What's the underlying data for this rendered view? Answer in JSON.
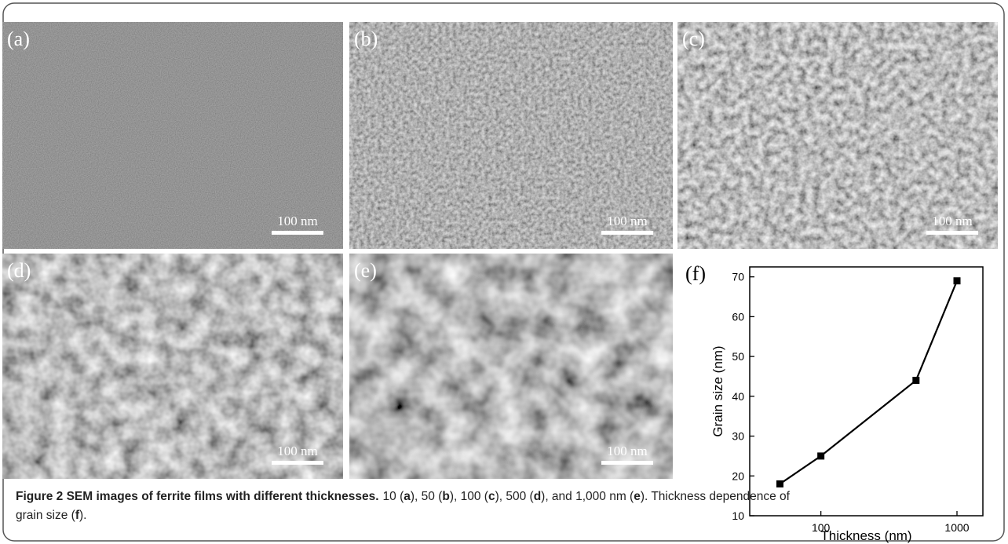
{
  "panels": [
    {
      "label": "(a)",
      "scale": "100 nm"
    },
    {
      "label": "(b)",
      "scale": "100 nm"
    },
    {
      "label": "(c)",
      "scale": "100 nm"
    },
    {
      "label": "(d)",
      "scale": "100 nm"
    },
    {
      "label": "(e)",
      "scale": "100 nm"
    }
  ],
  "chart_label": "(f)",
  "chart_data": {
    "type": "line",
    "x_label": "Thickness (nm)",
    "y_label": "Grain size (nm)",
    "x": [
      50,
      100,
      500,
      1000
    ],
    "values": [
      18,
      25,
      44,
      69
    ],
    "color": "#000000",
    "xscale": "log",
    "xlim": [
      30,
      1550
    ],
    "xticks": [
      100,
      1000
    ],
    "ylim": [
      10,
      72.5
    ],
    "yticks": [
      10,
      20,
      30,
      40,
      50,
      60,
      70
    ]
  },
  "caption": {
    "title": "Figure 2 SEM images of ferrite films with different thicknesses.",
    "lines": [
      [
        "10 (",
        "a",
        "), 50 (",
        "b",
        "), 100 (",
        "c",
        "), 500 (",
        "d",
        "), and 1,000 nm (",
        "e",
        "). Thickness dependence of"
      ],
      [
        "grain size (",
        "f",
        ")."
      ]
    ]
  }
}
